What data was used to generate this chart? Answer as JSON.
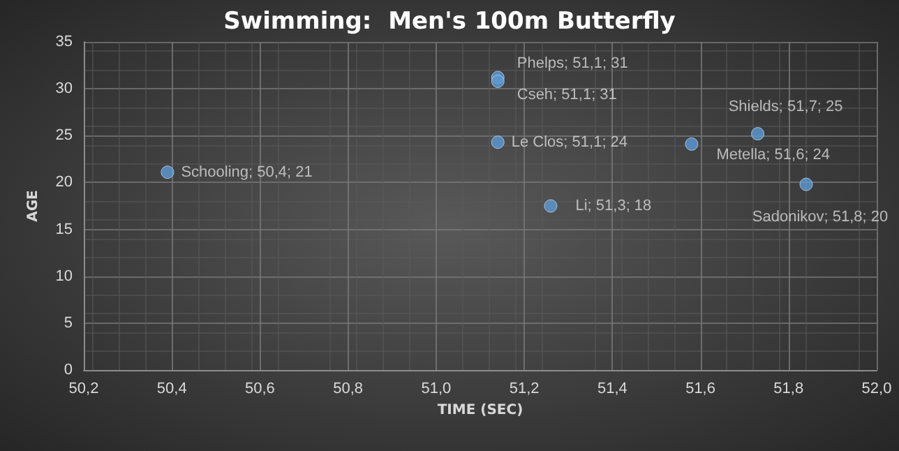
{
  "chart_data": {
    "type": "scatter",
    "title": "Swimming:  Men's 100m Butterfly",
    "xlabel": "TIME (SEC)",
    "ylabel": "AGE",
    "series": [
      {
        "color": "#5b9bd5",
        "x": [
          50.39,
          51.14,
          51.14,
          51.14,
          51.26,
          51.58,
          51.73,
          51.84
        ],
        "values": [
          21.1,
          31.2,
          30.8,
          24.3,
          17.5,
          24.1,
          25.2,
          19.8
        ],
        "value_labels": [
          "Schooling; 50,4; 21",
          "Phelps; 51,1; 31",
          "Cseh; 51,1; 31",
          "Le Clos; 51,1; 24",
          "Li; 51,3; 18",
          "Metella; 51,6; 24",
          "Shields; 51,7; 25",
          "Sadonikov; 51,8; 20"
        ]
      }
    ],
    "xlim": [
      50.2,
      52.0
    ],
    "xticks": [
      {
        "value": 50.2,
        "label": "50,2"
      },
      {
        "value": 50.4,
        "label": "50,4"
      },
      {
        "value": 50.6,
        "label": "50,6"
      },
      {
        "value": 50.8,
        "label": "50,8"
      },
      {
        "value": 51.0,
        "label": "51,0"
      },
      {
        "value": 51.2,
        "label": "51,2"
      },
      {
        "value": 51.4,
        "label": "51,4"
      },
      {
        "value": 51.6,
        "label": "51,6"
      },
      {
        "value": 51.8,
        "label": "51,8"
      },
      {
        "value": 52.0,
        "label": "52,0"
      }
    ],
    "ylim": [
      0,
      35
    ],
    "yticks": [
      0,
      5,
      10,
      15,
      20,
      25,
      30,
      35
    ],
    "grid": true,
    "marker": "circle"
  }
}
